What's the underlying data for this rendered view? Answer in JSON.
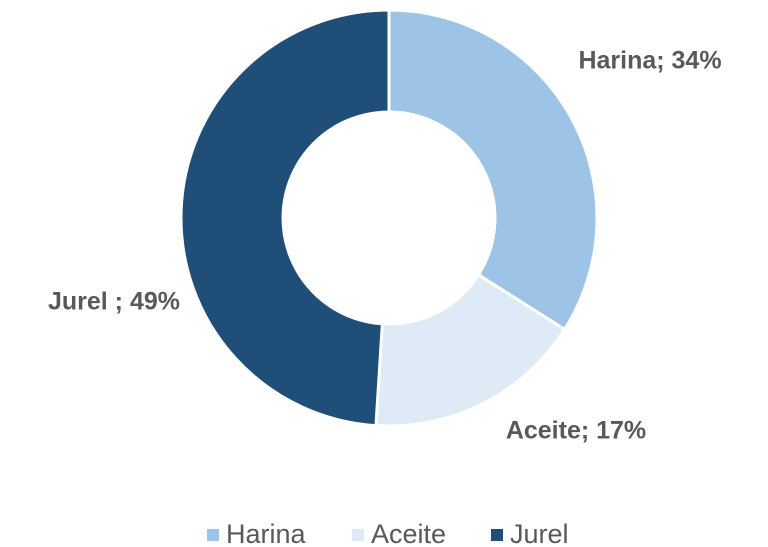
{
  "chart_data": {
    "type": "donut",
    "categories": [
      "Harina",
      "Aceite",
      "Jurel"
    ],
    "values": [
      34,
      17,
      49
    ],
    "value_labels": [
      "Harina; 34%",
      "Aceite; 17%",
      "Jurel ; 49%"
    ],
    "colors": [
      "#9dc3e6",
      "#deebf7",
      "#1f4e79"
    ],
    "legend": "bottom"
  }
}
